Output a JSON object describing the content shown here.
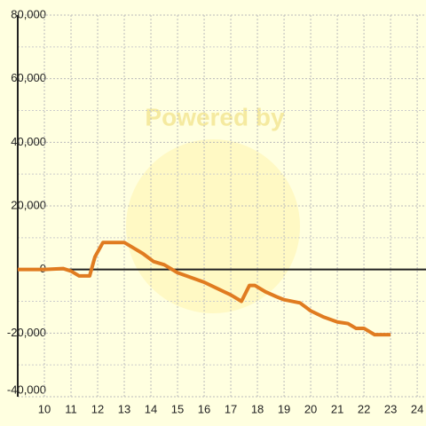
{
  "chart_data": {
    "type": "line",
    "watermark": "Powered by",
    "x": [
      9,
      10,
      10.7,
      11,
      11.3,
      11.7,
      11.9,
      12.2,
      12.5,
      13,
      13.3,
      13.7,
      14.1,
      14.5,
      15,
      15.5,
      16,
      16.5,
      17,
      17.4,
      17.7,
      17.9,
      18.3,
      18.7,
      19,
      19.6,
      20,
      20.5,
      21,
      21.4,
      21.7,
      22,
      22.4,
      23
    ],
    "series": [
      {
        "color": "#e07b20",
        "values": [
          0,
          0,
          300,
          -500,
          -2000,
          -2000,
          4000,
          8500,
          8500,
          8500,
          7000,
          5000,
          2500,
          1500,
          -1000,
          -2500,
          -4000,
          -6000,
          -8000,
          -10000,
          -5000,
          -5000,
          -7000,
          -8500,
          -9500,
          -10500,
          -13000,
          -15000,
          -16500,
          -17000,
          -18500,
          -18500,
          -20500,
          -20500
        ]
      }
    ],
    "xlim": [
      9,
      24.33
    ],
    "xticks": [
      10,
      11,
      12,
      13,
      14,
      15,
      16,
      17,
      18,
      19,
      20,
      21,
      22,
      23,
      24
    ],
    "ylim": [
      -40000,
      80000
    ],
    "yticks": [
      {
        "value": -40000,
        "label": "-40,000"
      },
      {
        "value": -20000,
        "label": "-20,000"
      },
      0,
      {
        "value": 20000,
        "label": "20,000"
      },
      {
        "value": 40000,
        "label": "40,000"
      },
      {
        "value": 60000,
        "label": "60,000"
      },
      {
        "value": 80000,
        "label": "80,000"
      }
    ],
    "grid": true
  }
}
